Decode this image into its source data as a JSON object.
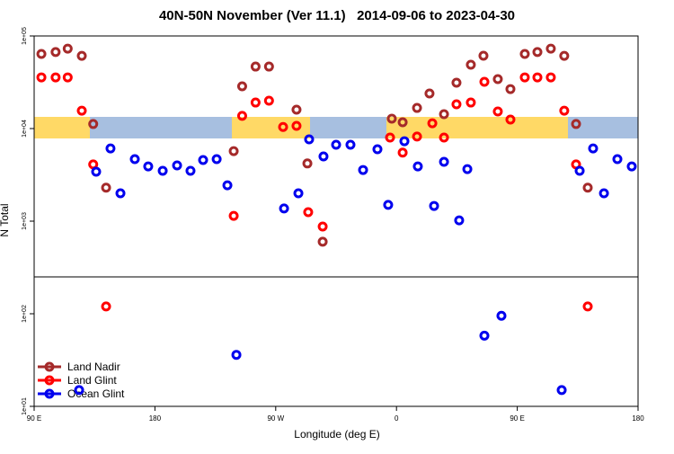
{
  "chart_data": {
    "type": "scatter",
    "title": "40N-50N November (Ver 11.1)   2014-09-06 to 2023-04-30",
    "x_label": "Longitude (deg E)",
    "y_label": "N Total",
    "log_y": true,
    "legend": "lower left",
    "xlim": [
      90,
      540
    ],
    "xticks": [
      {
        "value": 90,
        "label": "90 E"
      },
      180,
      {
        "value": 270,
        "label": "90 W"
      },
      {
        "value": 360,
        "label": "0"
      },
      {
        "value": 450,
        "label": "90 E"
      },
      {
        "value": 540,
        "label": "180"
      }
    ],
    "panels": [
      {
        "ylim": [
          250,
          100000
        ],
        "yticks": [
          {
            "value": 100000,
            "label": "1e+05"
          },
          {
            "value": 10000,
            "label": "1e+04"
          },
          {
            "value": 1000,
            "label": "1e+03"
          }
        ]
      },
      {
        "ylim": [
          10,
          250
        ],
        "yticks": [
          {
            "value": 100,
            "label": "1e+02"
          },
          {
            "value": 10,
            "label": "1e+01"
          }
        ]
      }
    ],
    "series": [
      {
        "name": "Land Nadir",
        "color": "#a52a2a",
        "x": [
          95.4,
          106,
          115,
          125.5,
          134,
          143.6,
          238.7,
          245,
          255,
          265,
          285.5,
          293.6,
          305,
          356.5,
          364.6,
          375.3,
          384.6,
          395.4,
          404.7,
          415.4,
          424.8,
          435.5,
          444.9,
          455.6,
          465,
          475,
          485,
          493.8,
          502.5
        ],
        "values": [
          64000,
          67000,
          73000,
          61000,
          11200,
          2300,
          5700,
          28600,
          46700,
          46700,
          16000,
          4200,
          600,
          12800,
          11700,
          16700,
          23900,
          14300,
          31300,
          48900,
          61100,
          34200,
          26700,
          64000,
          67000,
          73000,
          61000,
          11200,
          2300
        ]
      },
      {
        "name": "Land Glint",
        "color": "#ff0000",
        "x": [
          95.4,
          106,
          115,
          125.5,
          134,
          143.6,
          238.7,
          245,
          255,
          265,
          275.5,
          285.5,
          294.2,
          305,
          355.2,
          364.6,
          375.3,
          386.7,
          395.4,
          404.7,
          415.4,
          425.5,
          435.5,
          444.9,
          455.6,
          465,
          475,
          485,
          493.8,
          502.5
        ],
        "values": [
          35700,
          35700,
          35700,
          15600,
          4100,
          120,
          1140,
          13700,
          19100,
          20000,
          10400,
          10700,
          1250,
          875,
          8000,
          5500,
          8200,
          11400,
          8000,
          18300,
          19100,
          32000,
          15300,
          12500,
          35700,
          35700,
          35700,
          15600,
          4100,
          120
        ]
      },
      {
        "name": "Ocean Glint",
        "color": "#0000ee",
        "x": [
          123.5,
          136.2,
          146.9,
          154.3,
          165,
          175,
          185.8,
          196.5,
          206.5,
          215.9,
          226,
          234,
          240.7,
          276.2,
          286.9,
          294.9,
          305.6,
          315,
          325.7,
          335.1,
          345.8,
          353.8,
          365.9,
          375.9,
          388,
          395.4,
          406.7,
          412.8,
          425.5,
          438.2,
          483.1,
          496.5,
          506.5,
          514.6,
          524.6,
          535.3
        ],
        "values": [
          15,
          3420,
          6100,
          2000,
          4680,
          3900,
          3500,
          4000,
          3500,
          4570,
          4680,
          2440,
          36,
          1370,
          2000,
          7640,
          5000,
          6680,
          6680,
          3570,
          5980,
          1500,
          7300,
          3900,
          1460,
          4370,
          1020,
          3650,
          58,
          95,
          15,
          3500,
          6100,
          2000,
          4680,
          3900
        ]
      }
    ]
  }
}
